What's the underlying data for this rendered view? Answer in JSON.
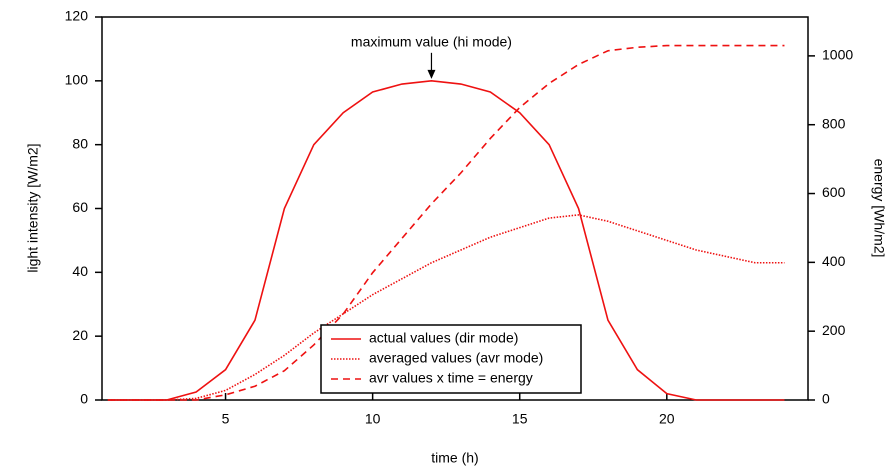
{
  "chart_data": {
    "type": "line",
    "x_label": "time (h)",
    "y_label": "light intensity [W/m2]",
    "y2_label": "energy [Wh/m2]",
    "annotation": {
      "text": "maximum value (hi mode)",
      "x": 12,
      "y": 100
    },
    "x": [
      1,
      2,
      3,
      4,
      5,
      6,
      7,
      8,
      9,
      10,
      11,
      12,
      13,
      14,
      15,
      16,
      17,
      18,
      19,
      20,
      21,
      22,
      23,
      24
    ],
    "series": [
      {
        "name": "actual values (dir mode)",
        "color": "#ee1111",
        "dash": "solid",
        "values": [
          0,
          0,
          0,
          2.5,
          9.5,
          25,
          60,
          80,
          90,
          96.5,
          99,
          100,
          99,
          96.5,
          90,
          80,
          60,
          25,
          9.5,
          2,
          0,
          0,
          0,
          0
        ]
      },
      {
        "name": "averaged values (avr mode)",
        "color": "#ee1111",
        "dash": "dotted",
        "values": [
          0,
          0,
          0,
          0.5,
          3,
          8,
          14,
          21,
          27,
          33,
          38,
          43,
          47,
          51,
          54,
          57,
          58,
          56,
          53,
          50,
          47,
          45,
          43,
          43
        ]
      },
      {
        "name": "avr values x time = energy",
        "color": "#ee1111",
        "dash": "dashed",
        "axis": "y2",
        "values": [
          0,
          0,
          0,
          0,
          15,
          40,
          85,
          160,
          250,
          370,
          470,
          570,
          660,
          760,
          850,
          920,
          975,
          1015,
          1025,
          1030,
          1030,
          1030,
          1030,
          1030
        ]
      }
    ],
    "xlim": [
      0.8,
      24.8
    ],
    "xticks": [
      5,
      10,
      15,
      20
    ],
    "ylim": [
      0,
      120
    ],
    "yticks": [
      0,
      20,
      40,
      60,
      80,
      100,
      120
    ],
    "y2lim": [
      0,
      1113
    ],
    "y2ticks": [
      0,
      200,
      400,
      600,
      800,
      1000
    ],
    "legend": "bottom-center"
  }
}
